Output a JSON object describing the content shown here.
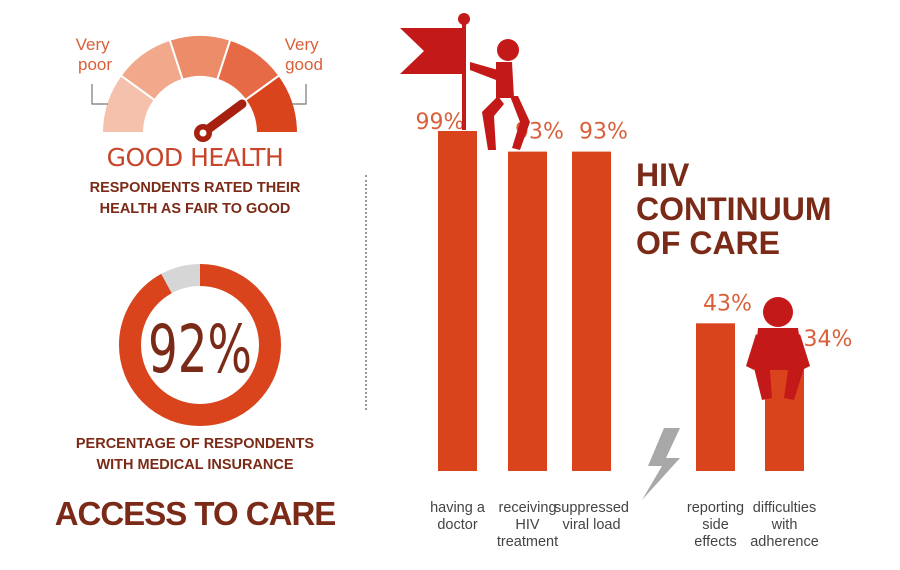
{
  "health": {
    "label_left": [
      "Very",
      "poor"
    ],
    "label_right": [
      "Very",
      "good"
    ],
    "title": "GOOD HEALTH",
    "caption": [
      "RESPONDENTS RATED THEIR",
      "HEALTH AS FAIR TO GOOD"
    ]
  },
  "insurance": {
    "value": 92,
    "value_text": "92%",
    "caption": [
      "PERCENTAGE OF RESPONDENTS",
      "WITH MEDICAL INSURANCE"
    ]
  },
  "access_title": "ACCESS TO CARE",
  "chart_title": [
    "HIV",
    "CONTINUUM",
    "OF CARE"
  ],
  "colors": {
    "dark_red": "#7a2a16",
    "accent": "#d9441c",
    "light_gray": "#d6d6d6",
    "gauge_segments": [
      "#f6c1ac",
      "#f2a98b",
      "#ec8c68",
      "#e56a45",
      "#d9441c"
    ],
    "figure": "#c41919",
    "bolt": "#a8a8a8"
  },
  "chart_data": {
    "type": "bar",
    "title": "HIV CONTINUUM OF CARE",
    "categories": [
      [
        "having a",
        "doctor"
      ],
      [
        "receiving",
        "HIV",
        "treatment"
      ],
      [
        "suppressed",
        "viral load"
      ],
      [
        "reporting",
        "side",
        "effects"
      ],
      [
        "difficulties",
        "with",
        "adherence"
      ]
    ],
    "values": [
      99,
      93,
      93,
      43,
      34
    ],
    "value_labels": [
      "99%",
      "93%",
      "93%",
      "43%",
      "34%"
    ],
    "ylim": [
      0,
      100
    ],
    "grid": false,
    "legend": "none"
  },
  "icons": {
    "gauge_needle": "needle-icon",
    "flag_figure": "flag-climber-icon",
    "sitting_figure": "sitting-figure-icon",
    "bolt": "lightning-bolt-icon"
  }
}
